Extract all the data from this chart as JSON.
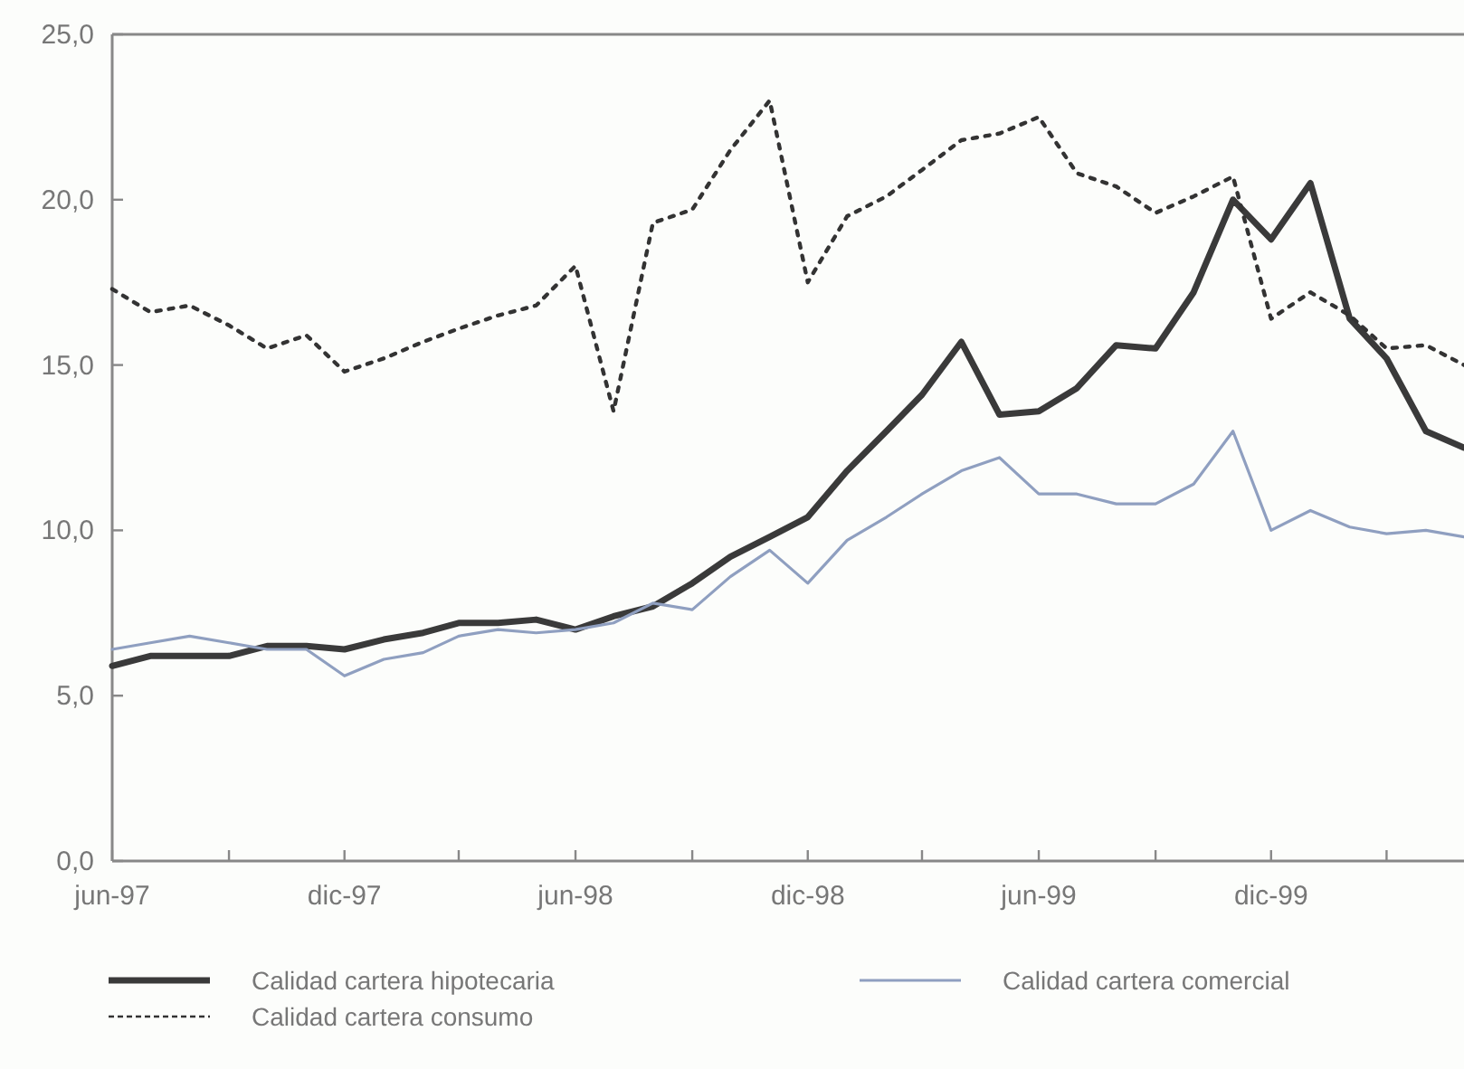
{
  "chart_data": {
    "type": "line",
    "x": [
      "1997-06",
      "1997-07",
      "1997-08",
      "1997-09",
      "1997-10",
      "1997-11",
      "1997-12",
      "1998-01",
      "1998-02",
      "1998-03",
      "1998-04",
      "1998-05",
      "1998-06",
      "1998-07",
      "1998-08",
      "1998-09",
      "1998-10",
      "1998-11",
      "1998-12",
      "1999-01",
      "1999-02",
      "1999-03",
      "1999-04",
      "1999-05",
      "1999-06",
      "1999-07",
      "1999-08",
      "1999-09",
      "1999-10",
      "1999-11",
      "1999-12",
      "2000-01",
      "2000-02",
      "2000-03",
      "2000-04",
      "2000-05"
    ],
    "series": [
      {
        "name": "Calidad cartera hipotecaria",
        "color": "#3a3a3a",
        "line_style": "solid",
        "values": [
          5.9,
          6.2,
          6.2,
          6.2,
          6.5,
          6.5,
          6.4,
          6.7,
          6.9,
          7.2,
          7.2,
          7.3,
          7.0,
          7.4,
          7.7,
          8.4,
          9.2,
          9.8,
          10.4,
          11.8,
          13.0,
          14.1,
          15.7,
          13.5,
          13.6,
          14.3,
          15.6,
          15.5,
          17.2,
          20.0,
          18.8,
          20.5,
          16.4,
          15.2,
          13.0,
          12.5
        ]
      },
      {
        "name": "Calidad cartera comercial",
        "color": "#8f9fc0",
        "line_style": "solid",
        "values": [
          6.4,
          6.6,
          6.8,
          6.6,
          6.4,
          6.4,
          5.6,
          6.1,
          6.3,
          6.8,
          7.0,
          6.9,
          7.0,
          7.2,
          7.8,
          7.6,
          8.6,
          9.4,
          8.4,
          9.7,
          10.4,
          11.1,
          11.8,
          12.2,
          11.1,
          11.1,
          10.8,
          10.8,
          11.4,
          13.0,
          10.0,
          10.6,
          10.1,
          9.9,
          10.0,
          9.8
        ]
      },
      {
        "name": "Calidad cartera consumo",
        "color": "#333333",
        "line_style": "dotted",
        "values": [
          17.3,
          16.6,
          16.8,
          16.2,
          15.5,
          15.9,
          14.8,
          15.2,
          15.7,
          16.1,
          16.5,
          16.8,
          18.0,
          13.6,
          19.3,
          19.7,
          21.5,
          23.0,
          17.5,
          19.5,
          20.1,
          20.9,
          21.8,
          22.0,
          22.5,
          20.8,
          20.4,
          19.6,
          20.1,
          20.7,
          16.4,
          17.2,
          16.5,
          15.5,
          15.6,
          15.0
        ]
      }
    ],
    "xlim": [
      "1997-06",
      "2000-05"
    ],
    "xticks": [
      {
        "value": "1997-06",
        "label": "jun-97"
      },
      {
        "value": "1997-09",
        "label": null
      },
      {
        "value": "1997-12",
        "label": "dic-97"
      },
      {
        "value": "1998-03",
        "label": null
      },
      {
        "value": "1998-06",
        "label": "jun-98"
      },
      {
        "value": "1998-09",
        "label": null
      },
      {
        "value": "1998-12",
        "label": "dic-98"
      },
      {
        "value": "1999-03",
        "label": null
      },
      {
        "value": "1999-06",
        "label": "jun-99"
      },
      {
        "value": "1999-09",
        "label": null
      },
      {
        "value": "1999-12",
        "label": "dic-99"
      },
      {
        "value": "2000-03",
        "label": null
      }
    ],
    "ylim": [
      0,
      25
    ],
    "yticks": [
      {
        "value": 0,
        "label": "0,0"
      },
      {
        "value": 5,
        "label": "5,0"
      },
      {
        "value": 10,
        "label": "10,0"
      },
      {
        "value": 15,
        "label": "15,0"
      },
      {
        "value": 20,
        "label": "20,0"
      },
      {
        "value": 25,
        "label": "25,0"
      }
    ],
    "grid": false,
    "legend": "bottom"
  }
}
